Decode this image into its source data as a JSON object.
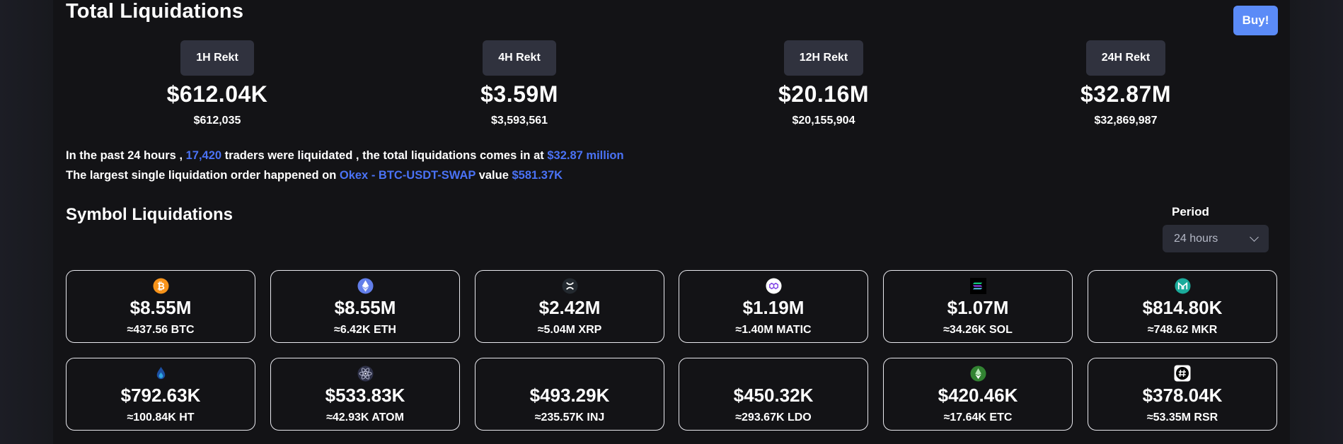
{
  "header": {
    "title": "Total Liquidations",
    "buy_label": "Buy!"
  },
  "rekt": [
    {
      "label": "1H Rekt",
      "short": "$612.04K",
      "full": "$612,035"
    },
    {
      "label": "4H Rekt",
      "short": "$3.59M",
      "full": "$3,593,561"
    },
    {
      "label": "12H Rekt",
      "short": "$20.16M",
      "full": "$20,155,904"
    },
    {
      "label": "24H Rekt",
      "short": "$32.87M",
      "full": "$32,869,987"
    }
  ],
  "summary": {
    "line1_a": "In the past 24 hours , ",
    "traders": "17,420",
    "line1_b": " traders were liquidated , the total liquidations comes in at ",
    "total": "$32.87 million",
    "line2_a": "The largest single liquidation order happened on ",
    "order": "Okex - BTC-USDT-SWAP",
    "line2_b": " value ",
    "order_value": "$581.37K"
  },
  "symbols": {
    "title": "Symbol Liquidations",
    "period_label": "Period",
    "period_value": "24 hours",
    "cards": [
      {
        "icon": "btc-icon",
        "value": "$8.55M",
        "sub": "≈437.56 BTC"
      },
      {
        "icon": "eth-icon",
        "value": "$8.55M",
        "sub": "≈6.42K ETH"
      },
      {
        "icon": "xrp-icon",
        "value": "$2.42M",
        "sub": "≈5.04M XRP"
      },
      {
        "icon": "matic-icon",
        "value": "$1.19M",
        "sub": "≈1.40M MATIC"
      },
      {
        "icon": "sol-icon",
        "value": "$1.07M",
        "sub": "≈34.26K SOL"
      },
      {
        "icon": "mkr-icon",
        "value": "$814.80K",
        "sub": "≈748.62 MKR"
      },
      {
        "icon": "ht-icon",
        "value": "$792.63K",
        "sub": "≈100.84K HT"
      },
      {
        "icon": "atom-icon",
        "value": "$533.83K",
        "sub": "≈42.93K ATOM"
      },
      {
        "icon": "inj-icon",
        "value": "$493.29K",
        "sub": "≈235.57K INJ"
      },
      {
        "icon": "ldo-icon",
        "value": "$450.32K",
        "sub": "≈293.67K LDO"
      },
      {
        "icon": "etc-icon",
        "value": "$420.46K",
        "sub": "≈17.64K ETC"
      },
      {
        "icon": "rsr-icon",
        "value": "$378.04K",
        "sub": "≈53.35M RSR"
      }
    ]
  },
  "colors": {
    "accent": "#4a72f5",
    "buy": "#5b8bf7",
    "badge": "#30323e",
    "panel": "#131316"
  }
}
